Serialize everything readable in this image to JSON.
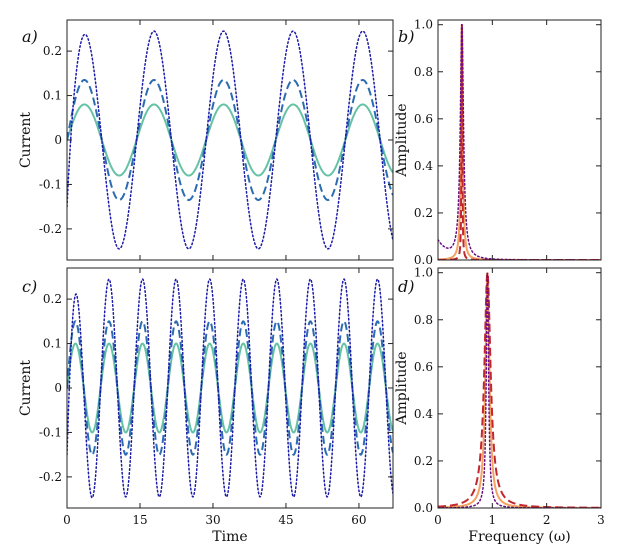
{
  "chart_data": [
    {
      "id": "a",
      "type": "line",
      "panel_label": "a)",
      "xlabel": "",
      "ylabel": "Current",
      "xlim": [
        0,
        67
      ],
      "ylim": [
        -0.27,
        0.27
      ],
      "yticks": [
        0.2,
        0.1,
        0.0,
        -0.1,
        -0.2
      ],
      "ytick_labels": [
        "0.2",
        "0.1",
        "0",
        "-0.1",
        "-0.2"
      ],
      "xticks": [],
      "xtick_labels": [],
      "grid": false,
      "series": [
        {
          "style": "solid",
          "color": "#66c2a5",
          "amplitude": 0.08,
          "period": 14.3,
          "start": 0.0
        },
        {
          "style": "dashed",
          "color": "#2b6cb0",
          "amplitude": 0.135,
          "period": 14.3,
          "start": 0.0
        },
        {
          "style": "dotted",
          "color": "#1a1aa8",
          "amplitude": 0.245,
          "period": 14.3,
          "start": -0.15
        }
      ]
    },
    {
      "id": "b",
      "type": "line",
      "panel_label": "b)",
      "xlabel": "",
      "ylabel": "Amplitude",
      "xlim": [
        0,
        3
      ],
      "ylim": [
        0,
        1.02
      ],
      "yticks": [
        0,
        0.2,
        0.4,
        0.6,
        0.8,
        1.0
      ],
      "ytick_labels": [
        "0.0",
        "0.2",
        "0.4",
        "0.6",
        "0.8",
        "1.0"
      ],
      "xticks": [],
      "xtick_labels": [],
      "grid": false,
      "series": [
        {
          "style": "solid",
          "color": "#f4a261",
          "peak": 0.44,
          "width": 0.02,
          "floor": 0.0
        },
        {
          "style": "dashed",
          "color": "#c1272d",
          "peak": 0.44,
          "width": 0.008,
          "floor": 0.0
        },
        {
          "style": "dotted",
          "color": "#6a0d83",
          "peak": 0.44,
          "width": 0.035,
          "floor": 0.08
        }
      ]
    },
    {
      "id": "c",
      "type": "line",
      "panel_label": "c)",
      "xlabel": "Time",
      "ylabel": "Current",
      "xlim": [
        0,
        67
      ],
      "ylim": [
        -0.27,
        0.27
      ],
      "yticks": [
        0.2,
        0.1,
        0.0,
        -0.1,
        -0.2
      ],
      "ytick_labels": [
        "0.2",
        "0.1",
        "0",
        "-0.1",
        "-0.2"
      ],
      "xticks": [
        0,
        15,
        30,
        45,
        60
      ],
      "xtick_labels": [
        "0",
        "15",
        "30",
        "45",
        "60"
      ],
      "grid": false,
      "series": [
        {
          "style": "solid",
          "color": "#66c2a5",
          "amplitude": 0.1,
          "period": 6.9,
          "start": 0.0
        },
        {
          "style": "dashed",
          "color": "#2b6cb0",
          "amplitude": 0.15,
          "period": 6.9,
          "start": 0.0
        },
        {
          "style": "dotted",
          "color": "#1a1aa8",
          "amplitude": 0.245,
          "period": 6.9,
          "start": -0.15
        }
      ]
    },
    {
      "id": "d",
      "type": "line",
      "panel_label": "d)",
      "xlabel": "Frequency (ω)",
      "ylabel": "Amplitude",
      "xlim": [
        0,
        3
      ],
      "ylim": [
        0,
        1.02
      ],
      "yticks": [
        0,
        0.2,
        0.4,
        0.6,
        0.8,
        1.0
      ],
      "ytick_labels": [
        "0.0",
        "0.2",
        "0.4",
        "0.6",
        "0.8",
        "1.0"
      ],
      "xticks": [
        0,
        1,
        2,
        3
      ],
      "xtick_labels": [
        "0",
        "1",
        "2",
        "3"
      ],
      "grid": false,
      "series": [
        {
          "style": "solid",
          "color": "#f4a261",
          "peak": 0.91,
          "width": 0.045,
          "floor": 0.0
        },
        {
          "style": "dashed",
          "color": "#c1272d",
          "peak": 0.91,
          "width": 0.07,
          "floor": 0.0
        },
        {
          "style": "dotted",
          "color": "#6a0d83",
          "peak": 0.91,
          "width": 0.025,
          "floor": 0.0
        }
      ]
    }
  ]
}
